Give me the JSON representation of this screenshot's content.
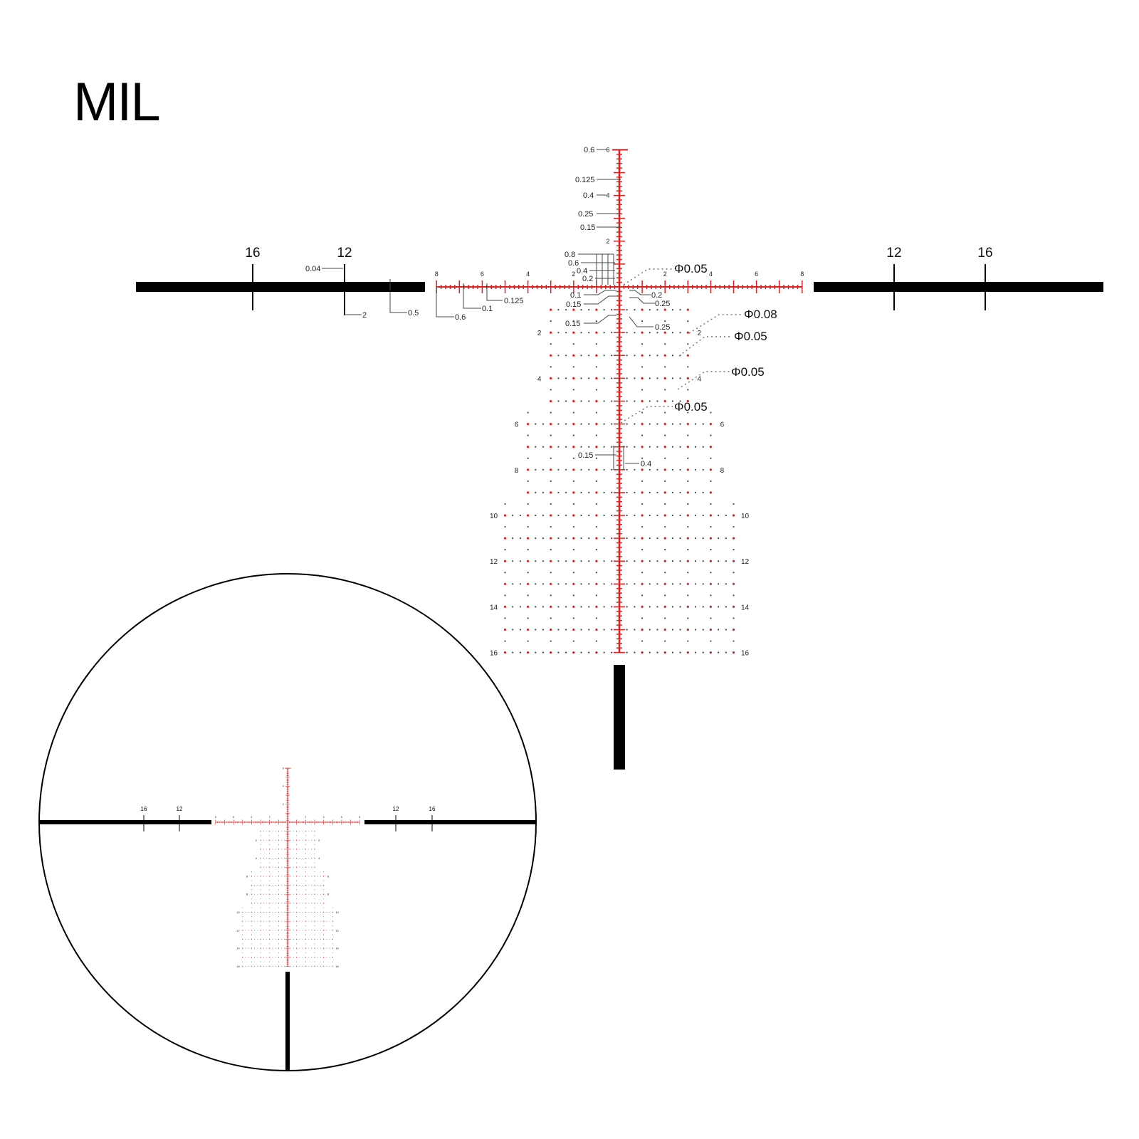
{
  "title": "MIL",
  "colors": {
    "reticle": "#e02020",
    "post": "#000000",
    "dots": "#444444",
    "callout": "#333333"
  },
  "stadia_labels": {
    "left_outer": "16",
    "left_inner": "12",
    "right_inner": "12",
    "right_outer": "16"
  },
  "horizontal_labels": [
    "8",
    "6",
    "4",
    "2",
    "2",
    "4",
    "6",
    "8"
  ],
  "vertical_labels": {
    "six": "6",
    "four": "4",
    "two": "2"
  },
  "row_labels": [
    "2",
    "4",
    "6",
    "8",
    "10",
    "12",
    "14",
    "16"
  ],
  "callouts": {
    "top_06": "0.6",
    "top_0125": "0.125",
    "top_04": "0.4",
    "top_025": "0.25",
    "top_015": "0.15",
    "grid_08": "0.8",
    "grid_06": "0.6",
    "grid_04": "0.4",
    "grid_02": "0.2",
    "low_01": "0.1",
    "low_015": "0.15",
    "low_02": "0.2",
    "low_025": "0.25",
    "low2_015": "0.15",
    "low2_025": "0.25",
    "dot_center": "Φ0.05",
    "dot_008": "Φ0.08",
    "dot_005a": "Φ0.05",
    "dot_005b": "Φ0.05",
    "dot_005c": "Φ0.05",
    "box_015": "0.15",
    "box_04": "0.4",
    "bar_004": "0.04",
    "bar_2": "2",
    "bar_05": "0.5",
    "h_06": "0.6",
    "h_01": "0.1",
    "h_0125": "0.125"
  }
}
